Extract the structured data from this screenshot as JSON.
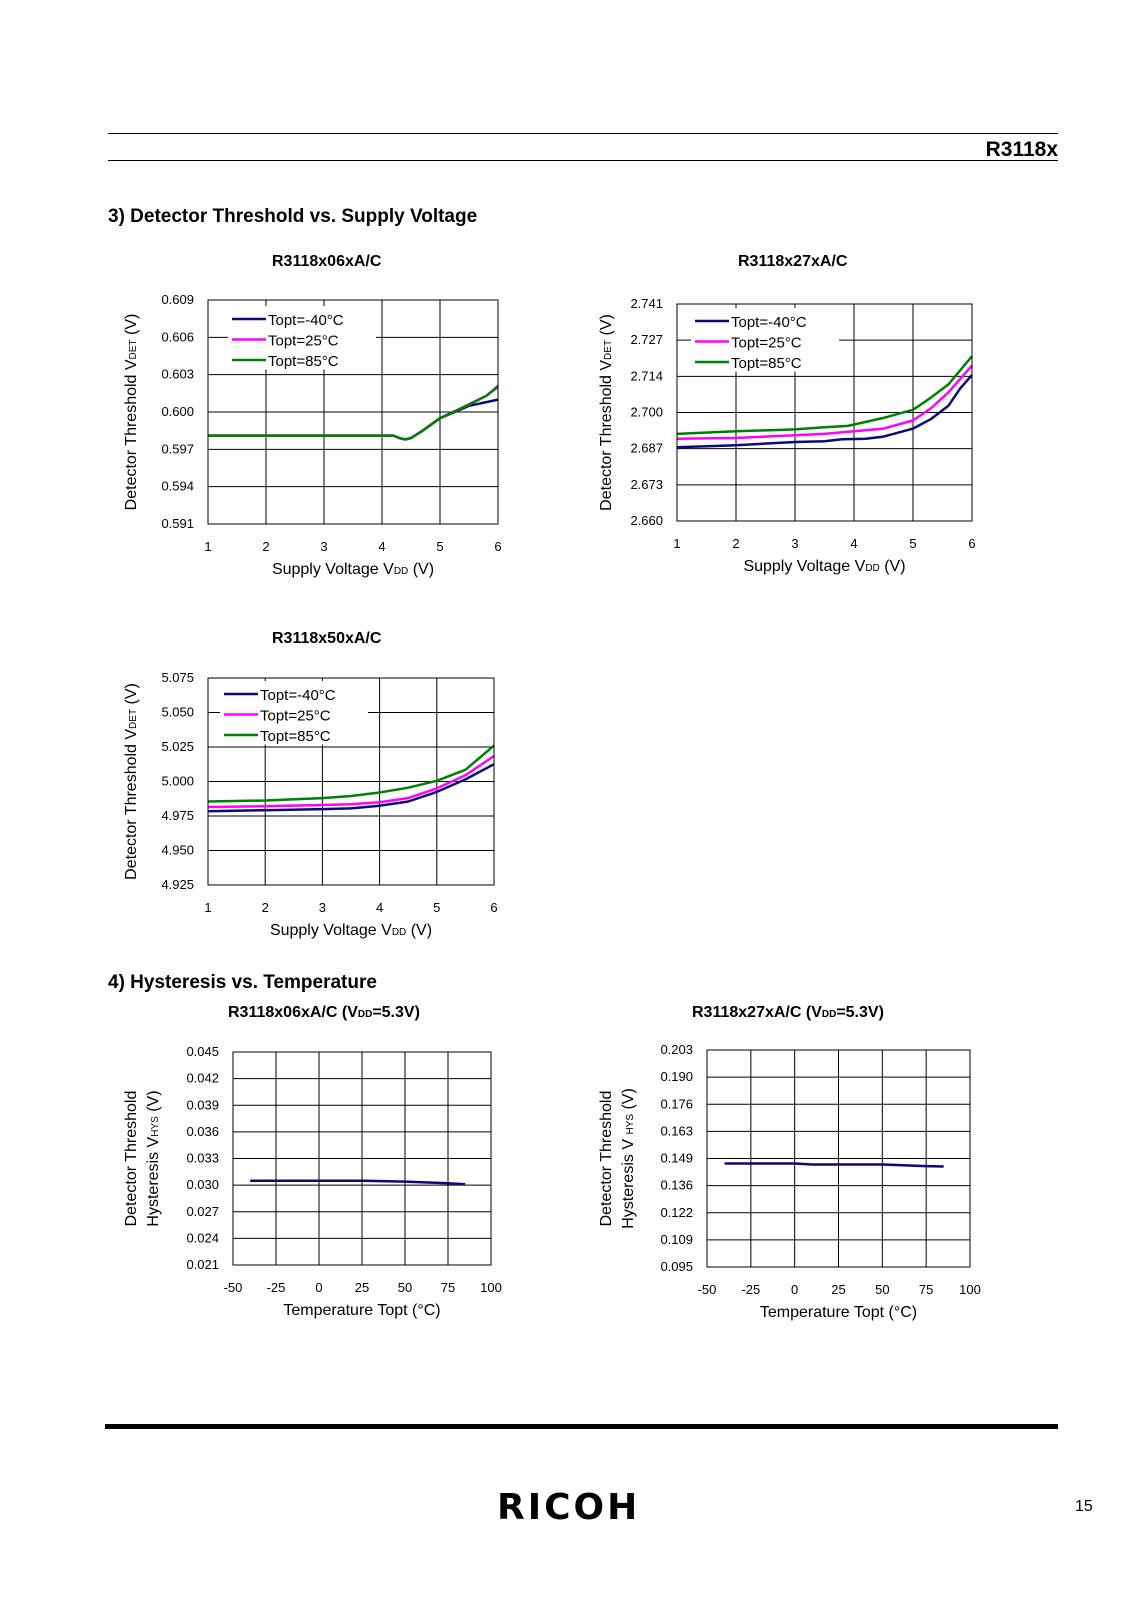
{
  "header": {
    "doc_id": "R3118x"
  },
  "sections": {
    "s3": "3) Detector Threshold vs. Supply Voltage",
    "s4": "4) Hysteresis vs. Temperature"
  },
  "footer": {
    "logo": "RICOH",
    "page_number": "15"
  },
  "colors": {
    "-40": "#0a0a78",
    "25": "#ff00ff",
    "85": "#008000"
  },
  "chart_data": [
    {
      "id": "c06",
      "type": "line",
      "title": "R3118x06xA/C",
      "xlabel": "Supply Voltage V",
      "xlabel_sub": "DD",
      "xlabel_tail": " (V)",
      "ylabel": "Detector Threshold V",
      "ylabel_sub": "DET",
      "ylabel_tail": " (V)",
      "xlim": [
        1,
        6
      ],
      "ylim": [
        0.591,
        0.609
      ],
      "xticks": [
        "1",
        "2",
        "3",
        "4",
        "5",
        "6"
      ],
      "yticks": [
        "0.609",
        "0.606",
        "0.603",
        "0.600",
        "0.597",
        "0.594",
        "0.591"
      ],
      "legend": "top-left",
      "series": [
        {
          "name": "Topt=-40°C",
          "color_key": "-40",
          "x": [
            1,
            4.2,
            4.3,
            4.4,
            4.5,
            4.7,
            5,
            5.5,
            6
          ],
          "y": [
            0.5981,
            0.5981,
            0.5979,
            0.5978,
            0.5979,
            0.5985,
            0.5995,
            0.6005,
            0.601
          ]
        },
        {
          "name": "Topt=25°C",
          "color_key": "25",
          "x": [
            1,
            4.2,
            4.3,
            4.4,
            4.5,
            4.7,
            5,
            5.5,
            5.8,
            6
          ],
          "y": [
            0.5981,
            0.5981,
            0.5979,
            0.5978,
            0.5979,
            0.5985,
            0.5995,
            0.6006,
            0.6013,
            0.602
          ]
        },
        {
          "name": "Topt=85°C",
          "color_key": "85",
          "x": [
            1,
            4.2,
            4.3,
            4.4,
            4.5,
            4.7,
            5,
            5.5,
            5.8,
            6
          ],
          "y": [
            0.5981,
            0.5981,
            0.5979,
            0.5978,
            0.5979,
            0.5985,
            0.5995,
            0.6006,
            0.6013,
            0.6021
          ]
        }
      ]
    },
    {
      "id": "c27",
      "type": "line",
      "title": "R3118x27xA/C",
      "xlabel": "Supply Voltage V",
      "xlabel_sub": "DD",
      "xlabel_tail": " (V)",
      "ylabel": "Detector Threshold V",
      "ylabel_sub": "DET",
      "ylabel_tail": " (V)",
      "xlim": [
        1,
        6
      ],
      "ylim": [
        2.66,
        2.741
      ],
      "xticks": [
        "1",
        "2",
        "3",
        "4",
        "5",
        "6"
      ],
      "yticks": [
        "2.741",
        "2.727",
        "2.714",
        "2.700",
        "2.687",
        "2.673",
        "2.660"
      ],
      "legend": "top-left",
      "series": [
        {
          "name": "Topt=-40°C",
          "color_key": "-40",
          "x": [
            1,
            2,
            3,
            3.5,
            3.8,
            4.2,
            4.5,
            5,
            5.3,
            5.6,
            5.8,
            6
          ],
          "y": [
            2.6875,
            2.6883,
            2.6895,
            2.6898,
            2.6905,
            2.6907,
            2.6915,
            2.6945,
            2.698,
            2.703,
            2.7095,
            2.7145
          ]
        },
        {
          "name": "Topt=25°C",
          "color_key": "25",
          "x": [
            1,
            2,
            3,
            3.5,
            4,
            4.5,
            5,
            5.3,
            5.6,
            6
          ],
          "y": [
            2.6907,
            2.691,
            2.692,
            2.6925,
            2.6935,
            2.6945,
            2.6975,
            2.702,
            2.708,
            2.718
          ]
        },
        {
          "name": "Topt=85°C",
          "color_key": "85",
          "x": [
            1,
            2,
            3,
            3.5,
            3.9,
            4.5,
            5,
            5.3,
            5.6,
            6
          ],
          "y": [
            2.6925,
            2.6935,
            2.6942,
            2.695,
            2.6955,
            2.6985,
            2.7015,
            2.706,
            2.711,
            2.7215
          ]
        }
      ]
    },
    {
      "id": "c50",
      "type": "line",
      "title": "R3118x50xA/C",
      "xlabel": "Supply Voltage V",
      "xlabel_sub": "DD",
      "xlabel_tail": " (V)",
      "ylabel": "Detector Threshold V",
      "ylabel_sub": "DET",
      "ylabel_tail": " (V)",
      "xlim": [
        1,
        6
      ],
      "ylim": [
        4.925,
        5.075
      ],
      "xticks": [
        "1",
        "2",
        "3",
        "4",
        "5",
        "6"
      ],
      "yticks": [
        "5.075",
        "5.050",
        "5.025",
        "5.000",
        "4.975",
        "4.950",
        "4.925"
      ],
      "legend": "top-left",
      "series": [
        {
          "name": "Topt=-40°C",
          "color_key": "-40",
          "x": [
            1,
            2,
            3,
            3.5,
            4,
            4.5,
            5,
            5.5,
            6
          ],
          "y": [
            4.9785,
            4.9792,
            4.98,
            4.9805,
            4.9825,
            4.9855,
            4.9925,
            5.0015,
            5.0125
          ]
        },
        {
          "name": "Topt=25°C",
          "color_key": "25",
          "x": [
            1,
            2,
            3,
            3.5,
            4,
            4.5,
            5,
            5.5,
            6
          ],
          "y": [
            4.9815,
            4.982,
            4.983,
            4.9835,
            4.985,
            4.988,
            4.995,
            5.0045,
            5.0185
          ]
        },
        {
          "name": "Topt=85°C",
          "color_key": "85",
          "x": [
            1,
            2,
            3,
            3.5,
            4,
            4.5,
            5,
            5.5,
            6
          ],
          "y": [
            4.9855,
            4.9862,
            4.988,
            4.9895,
            4.992,
            4.9955,
            5.0005,
            5.0085,
            5.026
          ]
        }
      ]
    },
    {
      "id": "h06",
      "type": "line",
      "title": "R3118x06xA/C (V",
      "title_sub": "DD",
      "title_tail": "=5.3V)",
      "xlabel": "Temperature Topt (°C)",
      "ylabel_line1": "Detector Threshold",
      "ylabel_line2": "Hysteresis V",
      "ylabel_sub": "HYS",
      "ylabel_tail": " (V)",
      "xlim": [
        -50,
        100
      ],
      "ylim": [
        0.021,
        0.045
      ],
      "xticks": [
        "-50",
        "-25",
        "0",
        "25",
        "50",
        "75",
        "100"
      ],
      "yticks": [
        "0.045",
        "0.042",
        "0.039",
        "0.036",
        "0.033",
        "0.030",
        "0.027",
        "0.024",
        "0.021"
      ],
      "series": [
        {
          "color_key": "-40",
          "x": [
            -40,
            -25,
            0,
            25,
            50,
            75,
            85
          ],
          "y": [
            0.0305,
            0.0305,
            0.0305,
            0.0305,
            0.0304,
            0.0302,
            0.0301
          ]
        }
      ]
    },
    {
      "id": "h27",
      "type": "line",
      "title": "R3118x27xA/C (V",
      "title_sub": "DD",
      "title_tail": "=5.3V)",
      "xlabel": "Temperature Topt (°C)",
      "ylabel_line1": "Detector Threshold",
      "ylabel_line2": "Hysteresis V ",
      "ylabel_sub": "HYS",
      "ylabel_tail": " (V)",
      "xlim": [
        -50,
        100
      ],
      "ylim": [
        0.095,
        0.203
      ],
      "xticks": [
        "-50",
        "-25",
        "0",
        "25",
        "50",
        "75",
        "100"
      ],
      "yticks": [
        "0.203",
        "0.190",
        "0.176",
        "0.163",
        "0.149",
        "0.136",
        "0.122",
        "0.109",
        "0.095"
      ],
      "series": [
        {
          "color_key": "-40",
          "x": [
            -40,
            -25,
            0,
            10,
            25,
            50,
            75,
            85
          ],
          "y": [
            0.1465,
            0.1465,
            0.1465,
            0.146,
            0.146,
            0.146,
            0.1452,
            0.145
          ]
        }
      ]
    }
  ]
}
